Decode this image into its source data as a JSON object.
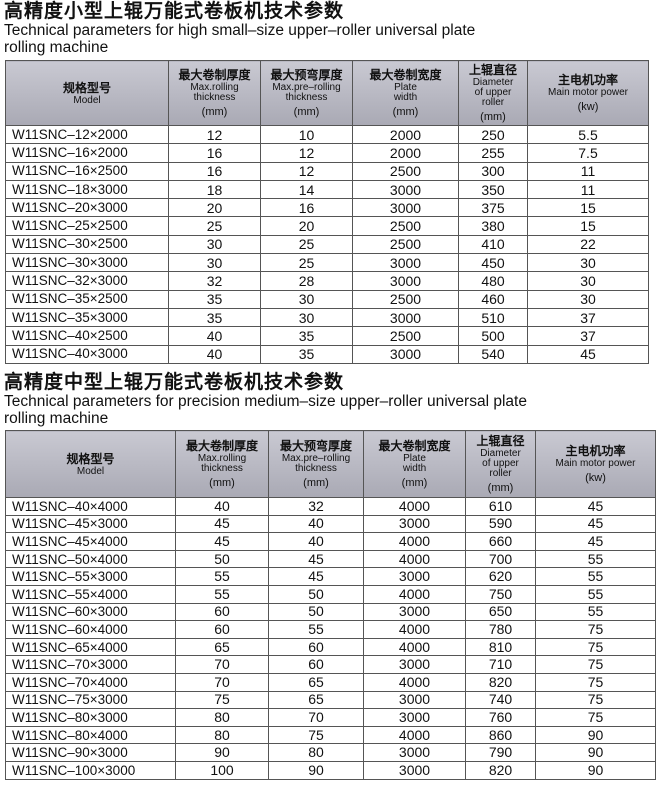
{
  "sections": [
    {
      "title": "高精度小型上辊万能式卷板机技术参数",
      "subtitle_lines": [
        "Technical parameters for high small–size upper–roller universal plate",
        "rolling machine"
      ],
      "table": {
        "header": [
          {
            "zh": "规格型号",
            "en": [
              "Model"
            ]
          },
          {
            "zh": "最大卷制厚度",
            "en": [
              "Max.rolling",
              "thickness"
            ],
            "unit": "(mm)"
          },
          {
            "zh": "最大预弯厚度",
            "en": [
              "Max.pre–rolling",
              "thickness"
            ],
            "unit": "(mm)"
          },
          {
            "zh": "最大卷制宽度",
            "en": [
              "Plate",
              "width"
            ],
            "unit": "(mm)"
          },
          {
            "zh": "上辊直径",
            "en": [
              "Diameter",
              "of upper",
              "roller"
            ],
            "unit": "(mm)"
          },
          {
            "zh": "主电机功率",
            "en": [
              "Main motor power"
            ],
            "unit": "(kw)"
          }
        ],
        "rows": [
          [
            "W11SNC–12×2000",
            12,
            10,
            2000,
            250,
            5.5
          ],
          [
            "W11SNC–16×2000",
            16,
            12,
            2000,
            255,
            7.5
          ],
          [
            "W11SNC–16×2500",
            16,
            12,
            2500,
            300,
            11
          ],
          [
            "W11SNC–18×3000",
            18,
            14,
            3000,
            350,
            11
          ],
          [
            "W11SNC–20×3000",
            20,
            16,
            3000,
            375,
            15
          ],
          [
            "W11SNC–25×2500",
            25,
            20,
            2500,
            380,
            15
          ],
          [
            "W11SNC–30×2500",
            30,
            25,
            2500,
            410,
            22
          ],
          [
            "W11SNC–30×3000",
            30,
            25,
            3000,
            450,
            30
          ],
          [
            "W11SNC–32×3000",
            32,
            28,
            3000,
            480,
            30
          ],
          [
            "W11SNC–35×2500",
            35,
            30,
            2500,
            460,
            30
          ],
          [
            "W11SNC–35×3000",
            35,
            30,
            3000,
            510,
            37
          ],
          [
            "W11SNC–40×2500",
            40,
            35,
            2500,
            500,
            37
          ],
          [
            "W11SNC–40×3000",
            40,
            35,
            3000,
            540,
            45
          ]
        ]
      }
    },
    {
      "title": "高精度中型上辊万能式卷板机技术参数",
      "subtitle_lines": [
        "Technical parameters for precision medium–size upper–roller universal plate",
        "rolling machine"
      ],
      "table": {
        "header": [
          {
            "zh": "规格型号",
            "en": [
              "Model"
            ]
          },
          {
            "zh": "最大卷制厚度",
            "en": [
              "Max.rolling",
              "thickness"
            ],
            "unit": "(mm)"
          },
          {
            "zh": "最大预弯厚度",
            "en": [
              "Max.pre–rolling",
              "thickness"
            ],
            "unit": "(mm)"
          },
          {
            "zh": "最大卷制宽度",
            "en": [
              "Plate",
              "width"
            ],
            "unit": "(mm)"
          },
          {
            "zh": "上辊直径",
            "en": [
              "Diameter",
              "of upper",
              "roller"
            ],
            "unit": "(mm)"
          },
          {
            "zh": "主电机功率",
            "en": [
              "Main motor power"
            ],
            "unit": "(kw)"
          }
        ],
        "rows": [
          [
            "W11SNC–40×4000",
            40,
            32,
            4000,
            610,
            45
          ],
          [
            "W11SNC–45×3000",
            45,
            40,
            3000,
            590,
            45
          ],
          [
            "W11SNC–45×4000",
            45,
            40,
            4000,
            660,
            45
          ],
          [
            "W11SNC–50×4000",
            50,
            45,
            4000,
            700,
            55
          ],
          [
            "W11SNC–55×3000",
            55,
            45,
            3000,
            620,
            55
          ],
          [
            "W11SNC–55×4000",
            55,
            50,
            4000,
            750,
            55
          ],
          [
            "W11SNC–60×3000",
            60,
            50,
            3000,
            650,
            55
          ],
          [
            "W11SNC–60×4000",
            60,
            55,
            4000,
            780,
            75
          ],
          [
            "W11SNC–65×4000",
            65,
            60,
            4000,
            810,
            75
          ],
          [
            "W11SNC–70×3000",
            70,
            60,
            3000,
            710,
            75
          ],
          [
            "W11SNC–70×4000",
            70,
            65,
            4000,
            820,
            75
          ],
          [
            "W11SNC–75×3000",
            75,
            65,
            3000,
            740,
            75
          ],
          [
            "W11SNC–80×3000",
            80,
            70,
            3000,
            760,
            75
          ],
          [
            "W11SNC–80×4000",
            80,
            75,
            4000,
            860,
            90
          ],
          [
            "W11SNC–90×3000",
            90,
            80,
            3000,
            790,
            90
          ],
          [
            "W11SNC–100×3000",
            100,
            90,
            3000,
            820,
            90
          ]
        ]
      }
    }
  ]
}
